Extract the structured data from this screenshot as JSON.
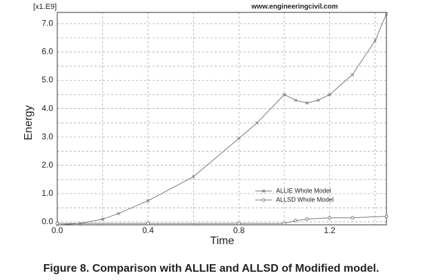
{
  "chart_data": {
    "type": "line",
    "caption": "Figure 8. Comparison with ALLIE and ALLSD of Modified model.",
    "watermark": "www.engineeringcivil.com",
    "x_label": "Time",
    "y_label": "Energy",
    "y_multiplier": "[x1.E9]",
    "xlim": [
      0,
      1.45
    ],
    "ylim": [
      -0.1,
      7.4
    ],
    "xticks": [
      {
        "value": 0,
        "label": "0.0"
      },
      0.4,
      0.8,
      1.2
    ],
    "x_minor_grid": [
      0.2,
      0.6,
      1.0,
      1.4
    ],
    "yticks": [
      {
        "value": 0,
        "label": "0.0"
      },
      {
        "value": 1,
        "label": "1.0"
      },
      {
        "value": 2,
        "label": "2.0"
      },
      {
        "value": 3,
        "label": "3.0"
      },
      {
        "value": 4,
        "label": "4.0"
      },
      {
        "value": 5,
        "label": "5.0"
      },
      {
        "value": 6,
        "label": "6.0"
      },
      {
        "value": 7,
        "label": "7.0"
      }
    ],
    "y_minor_grid": [
      0.5,
      1.5,
      2.5,
      3.5,
      4.5,
      5.5,
      6.5
    ],
    "grid": true,
    "legend": "lower right",
    "series": [
      {
        "name": "ALLIE Whole Model",
        "color": "#777777",
        "marker": "x",
        "x": [
          0,
          0.1,
          0.2,
          0.27,
          0.4,
          0.6,
          0.8,
          0.88,
          1.0,
          1.05,
          1.1,
          1.15,
          1.2,
          1.3,
          1.4,
          1.45
        ],
        "values": [
          -0.1,
          -0.05,
          0.1,
          0.3,
          0.75,
          1.6,
          2.95,
          3.5,
          4.5,
          4.3,
          4.2,
          4.3,
          4.5,
          5.2,
          6.4,
          7.35
        ]
      },
      {
        "name": "ALLSD Whole Model",
        "color": "#777777",
        "marker": "o",
        "x": [
          0,
          0.4,
          0.8,
          1.0,
          1.05,
          1.1,
          1.2,
          1.3,
          1.45
        ],
        "values": [
          -0.05,
          -0.05,
          -0.05,
          -0.05,
          0.05,
          0.1,
          0.15,
          0.15,
          0.2
        ]
      }
    ]
  }
}
